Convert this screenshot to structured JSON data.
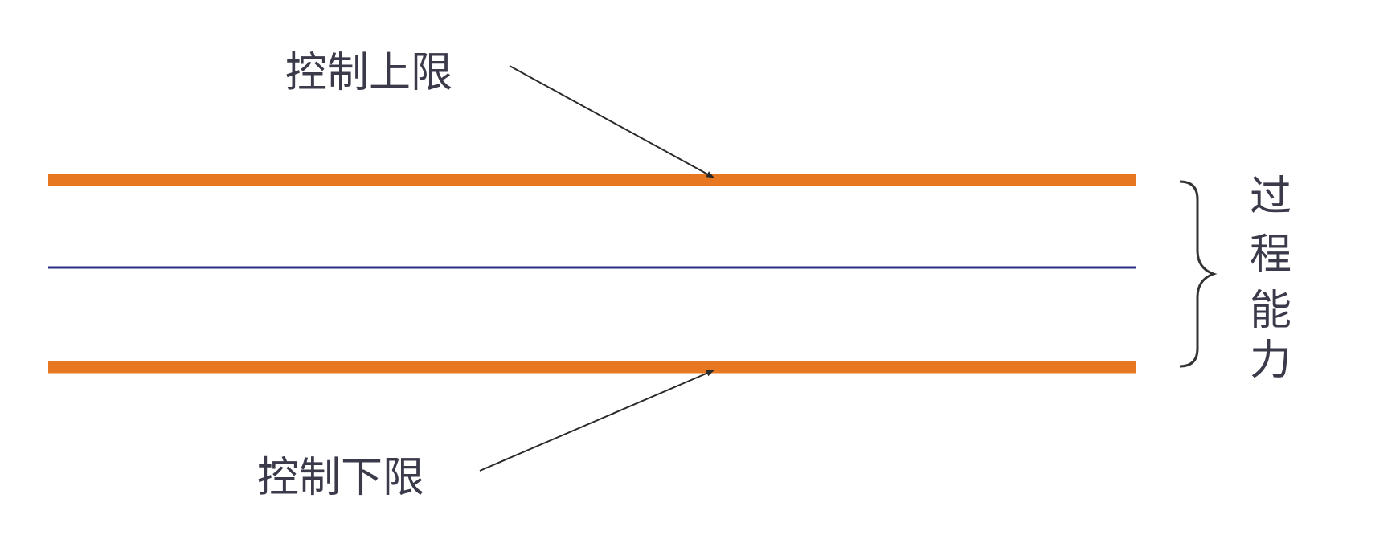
{
  "labels": {
    "upper_limit": "控制上限",
    "lower_limit": "控制下限",
    "process_capability": [
      "过",
      "程",
      "能",
      "力"
    ]
  },
  "colors": {
    "limit_line": "#E87722",
    "center_line": "#2B2F86",
    "arrow": "#2a2a2a",
    "brace": "#333333",
    "text": "#3a3a4a",
    "background": "#ffffff"
  }
}
